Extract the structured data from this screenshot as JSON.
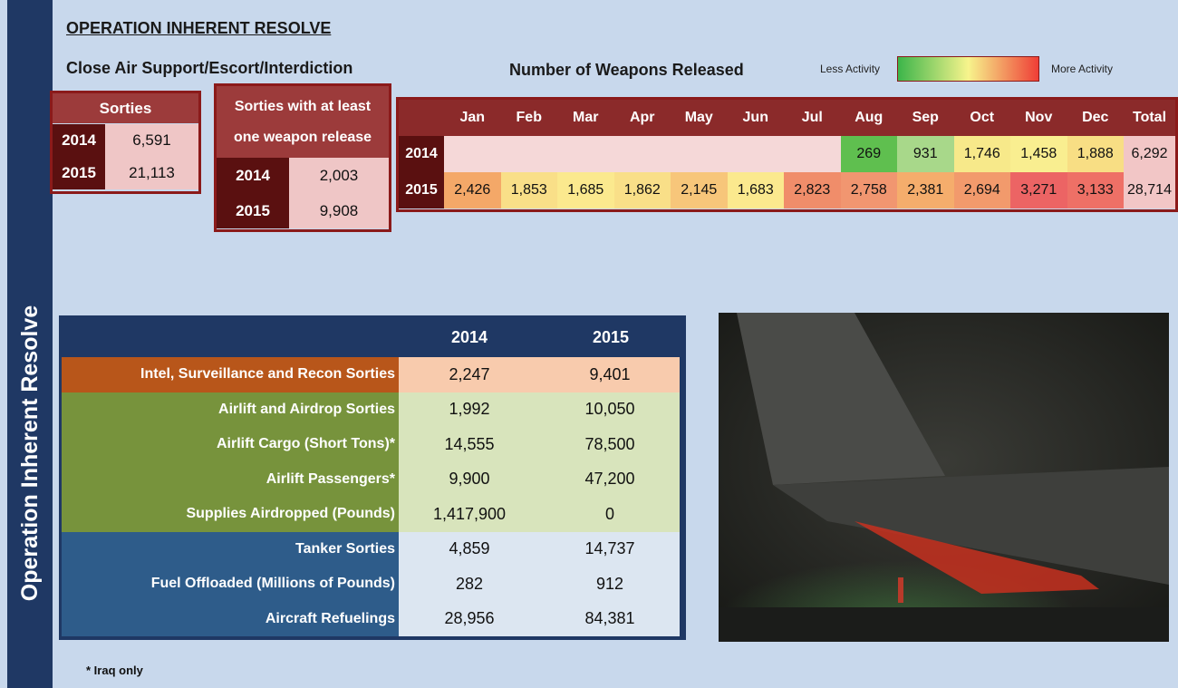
{
  "sidebar_title": "Operation Inherent Resolve",
  "header": {
    "title": "OPERATION INHERENT RESOLVE",
    "subtitle": "Close Air Support/Escort/Interdiction",
    "weapons_title": "Number of Weapons Released",
    "legend": {
      "low": "Less Activity",
      "high": "More Activity",
      "colors": [
        "#3cb54a",
        "#f7f48c",
        "#ef3e36"
      ]
    }
  },
  "sorties": {
    "title": "Sorties",
    "rows": [
      [
        "2014",
        "6,591"
      ],
      [
        "2015",
        "21,113"
      ]
    ]
  },
  "weapon_sorties": {
    "title": "Sorties with at least one weapon release",
    "rows": [
      [
        "2014",
        "2,003"
      ],
      [
        "2015",
        "9,908"
      ]
    ]
  },
  "weapons": {
    "columns": [
      "Jan",
      "Feb",
      "Mar",
      "Apr",
      "May",
      "Jun",
      "Jul",
      "Aug",
      "Sep",
      "Oct",
      "Nov",
      "Dec",
      "Total"
    ],
    "rows": [
      {
        "year": "2014",
        "cells": [
          null,
          null,
          null,
          null,
          null,
          null,
          null,
          "269",
          "931",
          "1,746",
          "1,458",
          "1,888",
          "6,292"
        ],
        "colors": [
          null,
          null,
          null,
          null,
          null,
          null,
          null,
          "#5fbf4f",
          "#a8d88a",
          "#f7e98a",
          "#f9ee90",
          "#f8de84",
          "#f2c6c6"
        ]
      },
      {
        "year": "2015",
        "cells": [
          "2,426",
          "1,853",
          "1,685",
          "1,862",
          "2,145",
          "1,683",
          "2,823",
          "2,758",
          "2,381",
          "2,694",
          "3,271",
          "3,133",
          "28,714"
        ],
        "colors": [
          "#f4a868",
          "#f9df88",
          "#fbe98e",
          "#f9df88",
          "#f7c67a",
          "#fbe98e",
          "#f08d6a",
          "#f19670",
          "#f5ad6c",
          "#f29a6c",
          "#ec6464",
          "#ee7066",
          "#f2c6c6"
        ]
      }
    ]
  },
  "table": {
    "columns": [
      "2014",
      "2015"
    ],
    "rows": [
      {
        "label": "Intel, Surveillance and Recon Sorties",
        "values": [
          "2,247",
          "9,401"
        ],
        "label_color": "#b8561a",
        "value_color": "#f8cbad"
      },
      {
        "label": "Airlift and Airdrop Sorties",
        "values": [
          "1,992",
          "10,050"
        ],
        "label_color": "#77933c",
        "value_color": "#d8e4bc"
      },
      {
        "label": "Airlift Cargo (Short Tons)*",
        "values": [
          "14,555",
          "78,500"
        ],
        "label_color": "#77933c",
        "value_color": "#d8e4bc"
      },
      {
        "label": "Airlift Passengers*",
        "values": [
          "9,900",
          "47,200"
        ],
        "label_color": "#77933c",
        "value_color": "#d8e4bc"
      },
      {
        "label": "Supplies Airdropped (Pounds)",
        "values": [
          "1,417,900",
          "0"
        ],
        "label_color": "#77933c",
        "value_color": "#d8e4bc"
      },
      {
        "label": "Tanker Sorties",
        "values": [
          "4,859",
          "14,737"
        ],
        "label_color": "#2e5c8a",
        "value_color": "#dce6f1"
      },
      {
        "label": "Fuel Offloaded (Millions of Pounds)",
        "values": [
          "282",
          "912"
        ],
        "label_color": "#2e5c8a",
        "value_color": "#dce6f1"
      },
      {
        "label": "Aircraft Refuelings",
        "values": [
          "28,956",
          "84,381"
        ],
        "label_color": "#2e5c8a",
        "value_color": "#dce6f1"
      }
    ]
  },
  "footnote": "* Iraq only"
}
